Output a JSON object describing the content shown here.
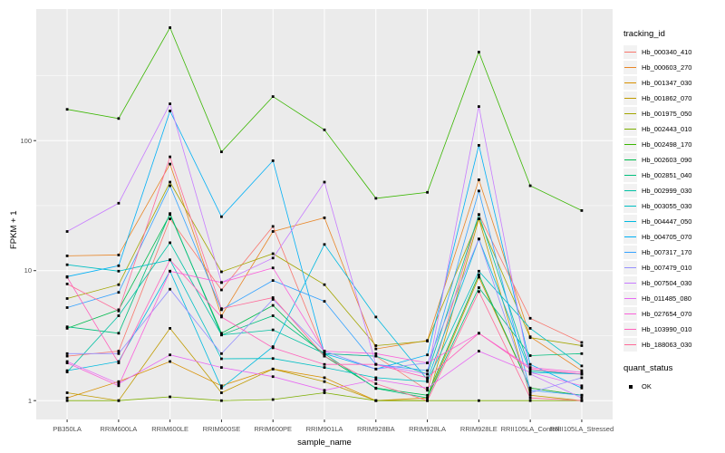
{
  "chart_data": {
    "type": "line",
    "title": "",
    "xlabel": "sample_name",
    "ylabel": "FPKM + 1",
    "y_scale": "log10",
    "y_ticks": [
      1,
      10,
      100
    ],
    "y_minor_ticks": [
      3.162,
      31.62,
      316.2
    ],
    "ylim_log": [
      -0.145,
      3.012
    ],
    "grid": "on",
    "panel_bg": "#EBEBEB",
    "grid_color": "#FFFFFF",
    "marker": {
      "shape": "square",
      "color": "#000000"
    },
    "legend_position": "right",
    "categories": [
      "PB350LA",
      "RRIM600LA",
      "RRIM600LE",
      "RRIM600SE",
      "RRIM600PE",
      "RRIM901LA",
      "RRIM928BA",
      "RRIM928LA",
      "RRIM928LE",
      "RRII105LA_Control",
      "RRII105LA_Stressed"
    ],
    "series": [
      {
        "name": "Hb_000340_410",
        "color": "#F8766D",
        "values": [
          2.2,
          2.4,
          25,
          7.1,
          21.9,
          2.3,
          2.2,
          1.2,
          27,
          4.3,
          2.8
        ]
      },
      {
        "name": "Hb_000603_270",
        "color": "#E88526",
        "values": [
          13,
          13.2,
          66,
          4.5,
          20,
          25.5,
          2.5,
          2.9,
          50,
          3.1,
          1.7
        ]
      },
      {
        "name": "Hb_001347_030",
        "color": "#D89000",
        "values": [
          1.05,
          1.4,
          2.0,
          1.3,
          1.75,
          1.5,
          1.0,
          1.05,
          8.9,
          1.25,
          1.1
        ]
      },
      {
        "name": "Hb_001862_070",
        "color": "#C09B00",
        "values": [
          1.15,
          1.0,
          3.6,
          1.15,
          1.75,
          1.4,
          1.0,
          1.0,
          25,
          1.1,
          1.0
        ]
      },
      {
        "name": "Hb_001975_050",
        "color": "#A3A500",
        "values": [
          6.1,
          7.8,
          48,
          9.8,
          13.5,
          7.8,
          2.65,
          2.87,
          25,
          3.05,
          2.65
        ]
      },
      {
        "name": "Hb_002443_010",
        "color": "#7CAE00",
        "values": [
          1.0,
          1.0,
          1.07,
          1.0,
          1.02,
          1.15,
          1.0,
          1.0,
          1.0,
          1.0,
          1.0
        ]
      },
      {
        "name": "Hb_002498_170",
        "color": "#39B600",
        "values": [
          174,
          148,
          740,
          82,
          218,
          121,
          36,
          40,
          480,
          45,
          29
        ]
      },
      {
        "name": "Hb_002603_090",
        "color": "#00BB4E",
        "values": [
          3.6,
          5.0,
          27,
          3.3,
          5.4,
          2.2,
          1.25,
          1.1,
          9.3,
          1.25,
          1.1
        ]
      },
      {
        "name": "Hb_002851_040",
        "color": "#00BF7D",
        "values": [
          3.7,
          3.3,
          27.5,
          3.2,
          4.5,
          2.3,
          1.24,
          1.05,
          7.4,
          2.22,
          2.3
        ]
      },
      {
        "name": "Hb_002999_030",
        "color": "#00C1A3",
        "values": [
          1.66,
          4.5,
          16.4,
          3.2,
          3.5,
          2.3,
          2.2,
          1.6,
          27,
          1.7,
          1.6
        ]
      },
      {
        "name": "Hb_003055_030",
        "color": "#00BFC4",
        "values": [
          11.1,
          9.9,
          12.1,
          2.1,
          2.11,
          1.8,
          1.5,
          1.4,
          9.9,
          3.6,
          1.85
        ]
      },
      {
        "name": "Hb_004447_050",
        "color": "#00BAE0",
        "values": [
          1.7,
          2.0,
          9.9,
          1.25,
          2.6,
          15.9,
          4.4,
          1.45,
          17.5,
          1.65,
          1.6
        ]
      },
      {
        "name": "Hb_004705_070",
        "color": "#00B0F6",
        "values": [
          9.0,
          10.9,
          169,
          26,
          70,
          2.3,
          1.75,
          2.25,
          92,
          1.9,
          1.25
        ]
      },
      {
        "name": "Hb_007317_170",
        "color": "#35A2FF",
        "values": [
          5.2,
          6.8,
          45,
          5.0,
          8.4,
          5.8,
          1.9,
          1.7,
          41,
          1.2,
          1.1
        ]
      },
      {
        "name": "Hb_007479_010",
        "color": "#9590FF",
        "values": [
          2.3,
          2.3,
          7.2,
          2.3,
          6.0,
          2.4,
          1.75,
          1.95,
          17.5,
          1.15,
          1.5
        ]
      },
      {
        "name": "Hb_007504_030",
        "color": "#C77CFF",
        "values": [
          20,
          33,
          192,
          8.1,
          12.5,
          48,
          1.9,
          1.6,
          183,
          1.6,
          1.05
        ]
      },
      {
        "name": "Hb_011485_080",
        "color": "#E76BF3",
        "values": [
          2.0,
          1.35,
          2.25,
          1.8,
          1.53,
          1.2,
          1.45,
          1.25,
          2.4,
          1.65,
          1.3
        ]
      },
      {
        "name": "Hb_027654_070",
        "color": "#FA62DB",
        "values": [
          1.95,
          1.3,
          9.9,
          8.1,
          10.5,
          2.4,
          2.3,
          1.95,
          3.3,
          1.8,
          1.65
        ]
      },
      {
        "name": "Hb_103990_010",
        "color": "#FF62BC",
        "values": [
          8.9,
          1.95,
          12.1,
          4.4,
          2.55,
          1.9,
          1.9,
          1.5,
          3.3,
          1.75,
          1.6
        ]
      },
      {
        "name": "Hb_188063_030",
        "color": "#FF6A98",
        "values": [
          7.9,
          4.9,
          75,
          5.1,
          6.2,
          2.2,
          1.35,
          1.0,
          6.9,
          1.05,
          1.0
        ]
      }
    ],
    "legend_title": "tracking_id",
    "quant_legend": {
      "title": "quant_status",
      "entries": [
        {
          "label": "OK",
          "glyph": "black-square"
        }
      ]
    }
  },
  "axes": {
    "x_title": "sample_name",
    "y_title": "FPKM + 1",
    "y_tick_labels": [
      "1",
      "10",
      "100"
    ]
  }
}
